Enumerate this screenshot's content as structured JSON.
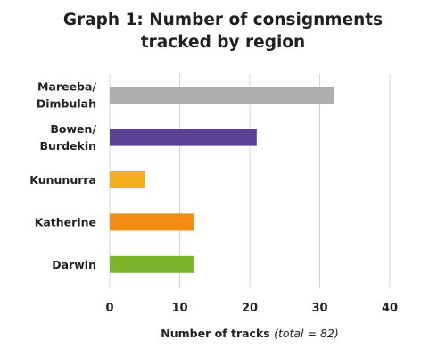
{
  "chart_data": {
    "type": "bar",
    "orientation": "horizontal",
    "title_lines": [
      "Graph 1: Number of consignments",
      "tracked by region"
    ],
    "categories": [
      {
        "lines": [
          "Mareeba/",
          "Dimbulah"
        ]
      },
      {
        "lines": [
          "Bowen/",
          "Burdekin"
        ]
      },
      {
        "lines": [
          "Kununurra"
        ]
      },
      {
        "lines": [
          "Katherine"
        ]
      },
      {
        "lines": [
          "Darwin"
        ]
      }
    ],
    "values": [
      32,
      21,
      5,
      12,
      12
    ],
    "colors": [
      "#aeadab",
      "#5b4294",
      "#f4ae1a",
      "#f28c13",
      "#7ab52b"
    ],
    "xlabel": "Number of tracks",
    "xlabel_note": "(total = 82)",
    "xticks": [
      0,
      10,
      20,
      30,
      40
    ],
    "xlim": [
      0,
      40
    ],
    "grid": true,
    "gridline_color": "#d4d4d4"
  }
}
